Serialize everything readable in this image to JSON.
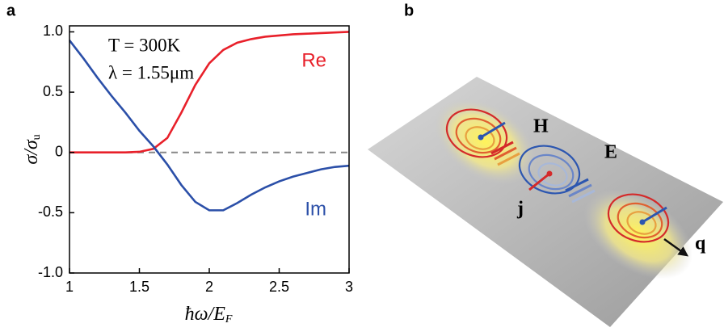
{
  "chart_data": {
    "type": "line",
    "panel_label": "a",
    "x_label": {
      "main": "ħω/E",
      "sub": "F"
    },
    "y_label": {
      "main": "σ/σ",
      "sub": "u"
    },
    "annotations": [
      "T = 300K",
      "λ = 1.55μm"
    ],
    "x": [
      1.0,
      1.1,
      1.2,
      1.3,
      1.4,
      1.5,
      1.6,
      1.7,
      1.8,
      1.9,
      2.0,
      2.1,
      2.2,
      2.3,
      2.4,
      2.5,
      2.6,
      2.7,
      2.8,
      2.9,
      3.0
    ],
    "series": [
      {
        "name": "Re",
        "color": "#e8202a",
        "values": [
          0,
          0,
          0,
          0,
          0,
          0.005,
          0.03,
          0.12,
          0.33,
          0.56,
          0.74,
          0.85,
          0.91,
          0.94,
          0.96,
          0.97,
          0.98,
          0.985,
          0.99,
          0.995,
          1.0
        ]
      },
      {
        "name": "Im",
        "color": "#2b4fa8",
        "values": [
          0.93,
          0.78,
          0.62,
          0.47,
          0.33,
          0.18,
          0.05,
          -0.1,
          -0.27,
          -0.41,
          -0.48,
          -0.48,
          -0.42,
          -0.35,
          -0.29,
          -0.24,
          -0.2,
          -0.17,
          -0.14,
          -0.12,
          -0.11
        ]
      }
    ],
    "reference_line": 0,
    "xlim": [
      1,
      3
    ],
    "xticks": [
      1,
      1.5,
      2,
      2.5,
      3
    ],
    "ylim": [
      -1,
      1.05
    ],
    "yticks": [
      {
        "value": -1,
        "label": "-1.0"
      },
      -0.5,
      0,
      0.5,
      {
        "value": 1,
        "label": "1.0"
      }
    ]
  },
  "diagram": {
    "panel_label": "b",
    "labels": {
      "H": "H",
      "E": "E",
      "j": "j",
      "q": "q"
    }
  }
}
